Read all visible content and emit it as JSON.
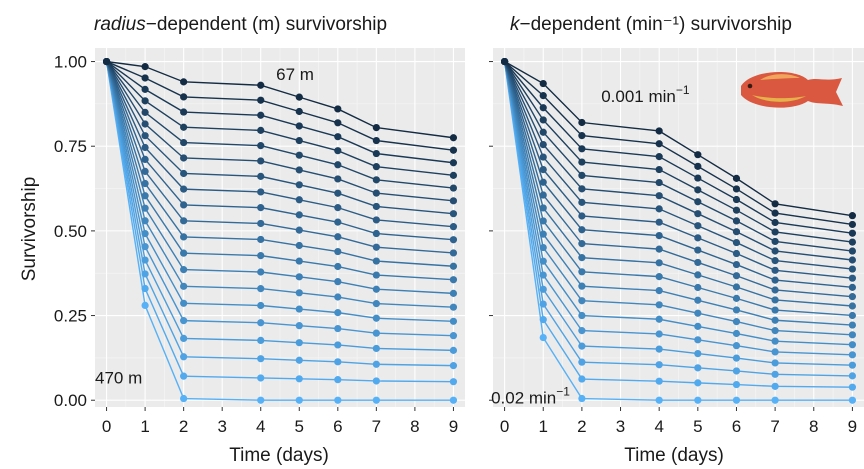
{
  "colors": {
    "panel_bg": "#ebebeb",
    "grid_major": "#ffffff",
    "dark": "#132b43",
    "light": "#56b1f7"
  },
  "ylabel": "Survivorship",
  "xlabel": "Time (days)",
  "chart_data": [
    {
      "type": "line",
      "title_italic": "radius",
      "title_rest": "−dependent (m) survivorship",
      "x": [
        0,
        1,
        2,
        3,
        4,
        5,
        6,
        7,
        8,
        9
      ],
      "xticks": [
        0,
        1,
        2,
        3,
        4,
        5,
        6,
        7,
        8,
        9
      ],
      "yticks": [
        0.0,
        0.25,
        0.5,
        0.75,
        1.0
      ],
      "ytick_labels": [
        "0.00",
        "0.25",
        "0.50",
        "0.75",
        "1.00"
      ],
      "xlim": [
        -0.3,
        9.3
      ],
      "ylim": [
        -0.02,
        1.04
      ],
      "grid": true,
      "annotations": [
        {
          "text": "67 m",
          "x": 4.4,
          "y": 0.945
        },
        {
          "text": "470 m",
          "x": -0.3,
          "y": 0.05
        }
      ],
      "series_x": [
        0,
        1,
        2,
        4,
        5,
        6,
        7,
        9
      ],
      "series_count": 20,
      "top_series": [
        1.0,
        0.985,
        0.94,
        0.93,
        0.895,
        0.86,
        0.805,
        0.775
      ],
      "bottom_series": [
        1.0,
        0.28,
        0.005,
        0.0,
        0.0,
        0.0,
        0.0,
        0.0
      ]
    },
    {
      "type": "line",
      "title_italic": "k",
      "title_rest": "−dependent (min⁻¹) survivorship",
      "x": [
        0,
        1,
        2,
        3,
        4,
        5,
        6,
        7,
        8,
        9
      ],
      "xticks": [
        0,
        1,
        2,
        3,
        4,
        5,
        6,
        7,
        8,
        9
      ],
      "yticks": [
        0.0,
        0.25,
        0.5,
        0.75,
        1.0
      ],
      "ytick_labels": [
        "0.00",
        "0.25",
        "0.50",
        "0.75",
        "1.00"
      ],
      "xlim": [
        -0.3,
        9.3
      ],
      "ylim": [
        -0.02,
        1.04
      ],
      "grid": true,
      "annotations": [
        {
          "text": "0.001 min⁻¹",
          "x": 2.5,
          "y": 0.88
        },
        {
          "text": "0.02 min⁻¹",
          "x": -0.35,
          "y": -0.01
        }
      ],
      "series_x": [
        0,
        1,
        2,
        4,
        5,
        6,
        7,
        9
      ],
      "series_count": 20,
      "top_series": [
        1.0,
        0.935,
        0.82,
        0.795,
        0.725,
        0.655,
        0.58,
        0.545
      ],
      "bottom_series": [
        1.0,
        0.185,
        0.005,
        0.0,
        0.0,
        0.0,
        0.0,
        0.0
      ]
    }
  ]
}
